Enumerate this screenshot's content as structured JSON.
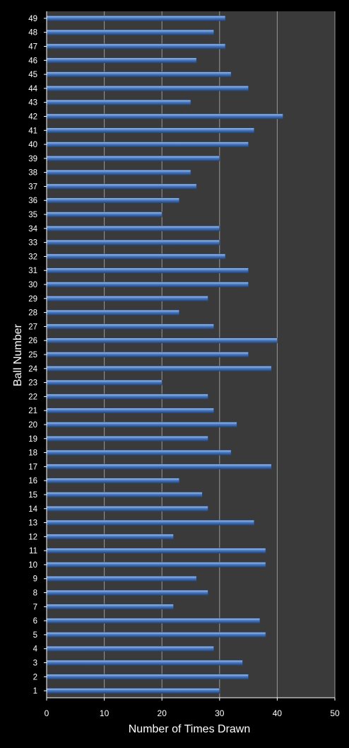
{
  "colors": {
    "background": "#000000",
    "plot_area": "#3a3a3a",
    "gridline": "#9a9a9a",
    "bar_fill": "#4a7cc4",
    "bar_highlight": "#a9c6f0",
    "bar_shadow": "#24477e",
    "text": "#ffffff"
  },
  "chart_data": {
    "type": "bar",
    "orientation": "horizontal",
    "xlabel": "Number of Times Drawn",
    "ylabel": "Ball Number",
    "xlim": [
      0,
      50
    ],
    "xticks": [
      "0",
      "10",
      "20",
      "30",
      "40",
      "50"
    ],
    "grid": "vertical major gridlines",
    "legend": "none",
    "categories": [
      "1",
      "2",
      "3",
      "4",
      "5",
      "6",
      "7",
      "8",
      "9",
      "10",
      "11",
      "12",
      "13",
      "14",
      "15",
      "16",
      "17",
      "18",
      "19",
      "20",
      "21",
      "22",
      "23",
      "24",
      "25",
      "26",
      "27",
      "28",
      "29",
      "30",
      "31",
      "32",
      "33",
      "34",
      "35",
      "36",
      "37",
      "38",
      "39",
      "40",
      "41",
      "42",
      "43",
      "44",
      "45",
      "46",
      "47",
      "48",
      "49"
    ],
    "values": [
      30,
      35,
      34,
      29,
      38,
      37,
      22,
      28,
      26,
      38,
      38,
      22,
      36,
      28,
      27,
      23,
      39,
      32,
      28,
      33,
      29,
      28,
      20,
      39,
      35,
      40,
      29,
      23,
      28,
      35,
      35,
      31,
      30,
      30,
      20,
      23,
      26,
      25,
      30,
      35,
      36,
      41,
      25,
      35,
      32,
      26,
      31,
      29,
      31
    ]
  }
}
